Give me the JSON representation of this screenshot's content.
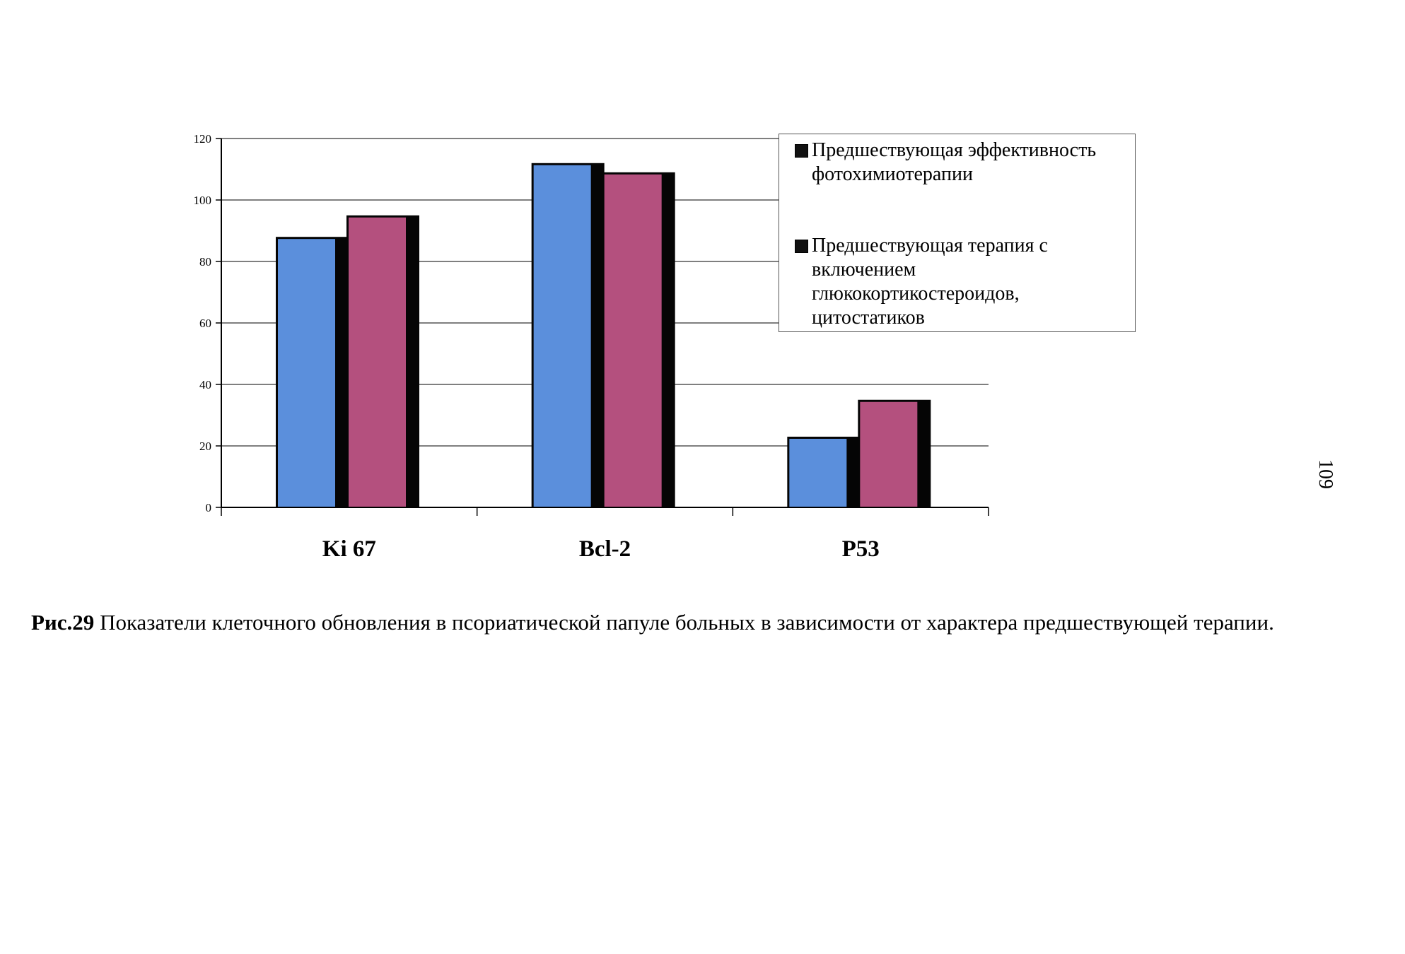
{
  "chart_data": {
    "type": "bar",
    "categories": [
      "Ki 67",
      "Bcl-2",
      "P53"
    ],
    "series": [
      {
        "name": "Предшествующая эффективность фотохимиотерапии",
        "values": [
          88,
          112,
          23
        ],
        "color": "#5b8fdc"
      },
      {
        "name": "Предшествующая терапия с включением глюкокортикостероидов, цитостатиков",
        "values": [
          95,
          109,
          35
        ],
        "color": "#b4507e"
      }
    ],
    "ylim": [
      0,
      120
    ],
    "yticks": [
      "0",
      "20",
      "40",
      "60",
      "80",
      "100",
      "120"
    ],
    "grid": true,
    "legend_position": "top-right"
  },
  "caption": {
    "label": "Рис.29",
    "text": " Показатели клеточного обновления в псориатической папуле больных в зависимости от характера предшествующей терапии."
  },
  "page_number": "109"
}
